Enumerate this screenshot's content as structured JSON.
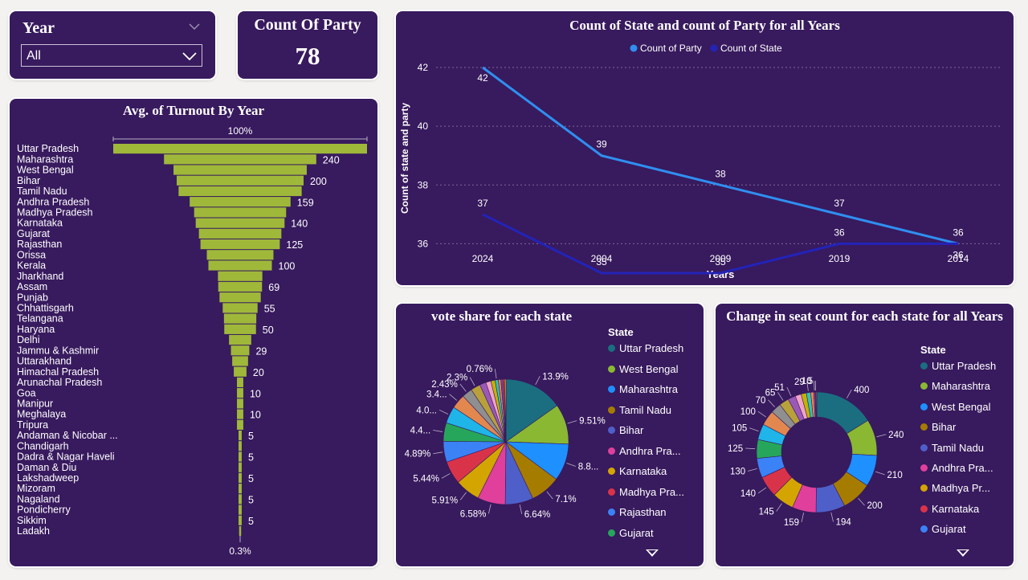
{
  "slicer": {
    "label": "Year",
    "value": "All"
  },
  "kpi": {
    "label": "Count Of Party",
    "value": "78"
  },
  "colors": {
    "card_bg": "#381a5e",
    "funnel_bar": "#9fb83a",
    "line_party": "#2f8ff0",
    "line_state": "#2323b8"
  },
  "chart_data": [
    {
      "type": "bar",
      "subtype": "funnel",
      "title": "Avg. of Turnout By Year",
      "top_label": "100%",
      "bottom_label": "0.3%",
      "categories": [
        "Uttar Pradesh",
        "Maharashtra",
        "West Bengal",
        "Bihar",
        "Tamil Nadu",
        "Andhra Pradesh",
        "Madhya Pradesh",
        "Karnataka",
        "Gujarat",
        "Rajasthan",
        "Orissa",
        "Kerala",
        "Jharkhand",
        "Assam",
        "Punjab",
        "Chhattisgarh",
        "Telangana",
        "Haryana",
        "Delhi",
        "Jammu & Kashmir",
        "Uttarakhand",
        "Himachal Pradesh",
        "Arunachal Pradesh",
        "Goa",
        "Manipur",
        "Meghalaya",
        "Tripura",
        "Andaman & Nicobar ...",
        "Chandigarh",
        "Dadra & Nagar Haveli",
        "Daman & Diu",
        "Lakshadweep",
        "Mizoram",
        "Nagaland",
        "Pondicherry",
        "Sikkim",
        "Ladakh"
      ],
      "values": [
        400,
        240,
        210,
        200,
        194,
        159,
        145,
        140,
        130,
        125,
        105,
        100,
        70,
        69,
        65,
        55,
        51,
        50,
        35,
        29,
        25,
        20,
        10,
        10,
        10,
        10,
        10,
        5,
        5,
        5,
        5,
        5,
        5,
        5,
        5,
        5,
        1
      ],
      "value_labels": [
        "",
        "240",
        "",
        "200",
        "",
        "159",
        "",
        "140",
        "",
        "125",
        "",
        "100",
        "",
        "69",
        "",
        "55",
        "",
        "50",
        "",
        "29",
        "",
        "20",
        "",
        "10",
        "",
        "10",
        "",
        "5",
        "",
        "5",
        "",
        "5",
        "",
        "5",
        "",
        "5",
        ""
      ]
    },
    {
      "type": "line",
      "title": "Count of State and count of Party for all Years",
      "xlabel": "Years",
      "ylabel": "Count of state and party",
      "x": [
        "2024",
        "2004",
        "2009",
        "2019",
        "2014"
      ],
      "ylim": [
        35,
        42
      ],
      "yticks": [
        "36",
        "38",
        "40",
        "42"
      ],
      "grid": true,
      "legend_position": "top-center",
      "series": [
        {
          "name": "Count of Party",
          "values": [
            42,
            39,
            38,
            37,
            36
          ],
          "labels": [
            "42",
            "39",
            "38",
            "37",
            "36"
          ]
        },
        {
          "name": "Count of State",
          "values": [
            37,
            35,
            35,
            36,
            36
          ],
          "labels": [
            "37",
            "35",
            "35",
            "36",
            "36"
          ]
        }
      ]
    },
    {
      "type": "pie",
      "title": "vote share for each state",
      "legend_title": "State",
      "legend": [
        "Uttar Pradesh",
        "West Bengal",
        "Maharashtra",
        "Tamil Nadu",
        "Bihar",
        "Andhra Pra...",
        "Karnataka",
        "Madhya Pra...",
        "Rajasthan",
        "Gujarat"
      ],
      "values": [
        13.9,
        9.51,
        8.8,
        7.1,
        6.64,
        6.58,
        5.91,
        5.44,
        4.89,
        4.4,
        4.0,
        3.4,
        2.43,
        2.3,
        1.5,
        1.2,
        1.0,
        0.76,
        0.6,
        0.5,
        0.4,
        0.3
      ],
      "labels": [
        "13.9%",
        "9.51%",
        "8.8...",
        "7.1%",
        "6.64%",
        "6.58%",
        "5.91%",
        "5.44%",
        "4.89%",
        "4.4...",
        "4.0...",
        "3.4...",
        "2.43%",
        "2.3%",
        "",
        "",
        "",
        "0.76%",
        "",
        "",
        "",
        ""
      ]
    },
    {
      "type": "pie",
      "subtype": "donut",
      "title": "Change in seat count for each state for all Years",
      "legend_title": "State",
      "legend": [
        "Uttar Pradesh",
        "Maharashtra",
        "West Bengal",
        "Bihar",
        "Tamil Nadu",
        "Andhra Pra...",
        "Madhya Pr...",
        "Karnataka",
        "Gujarat"
      ],
      "values": [
        400,
        240,
        210,
        200,
        194,
        159,
        145,
        140,
        130,
        125,
        105,
        100,
        70,
        65,
        51,
        40,
        35,
        29,
        20,
        10,
        5,
        5
      ],
      "labels": [
        "400",
        "240",
        "210",
        "200",
        "194",
        "159",
        "145",
        "140",
        "130",
        "125",
        "105",
        "100",
        "70",
        "65",
        "51",
        "",
        "",
        "29",
        "",
        "10",
        "5",
        ""
      ]
    }
  ]
}
